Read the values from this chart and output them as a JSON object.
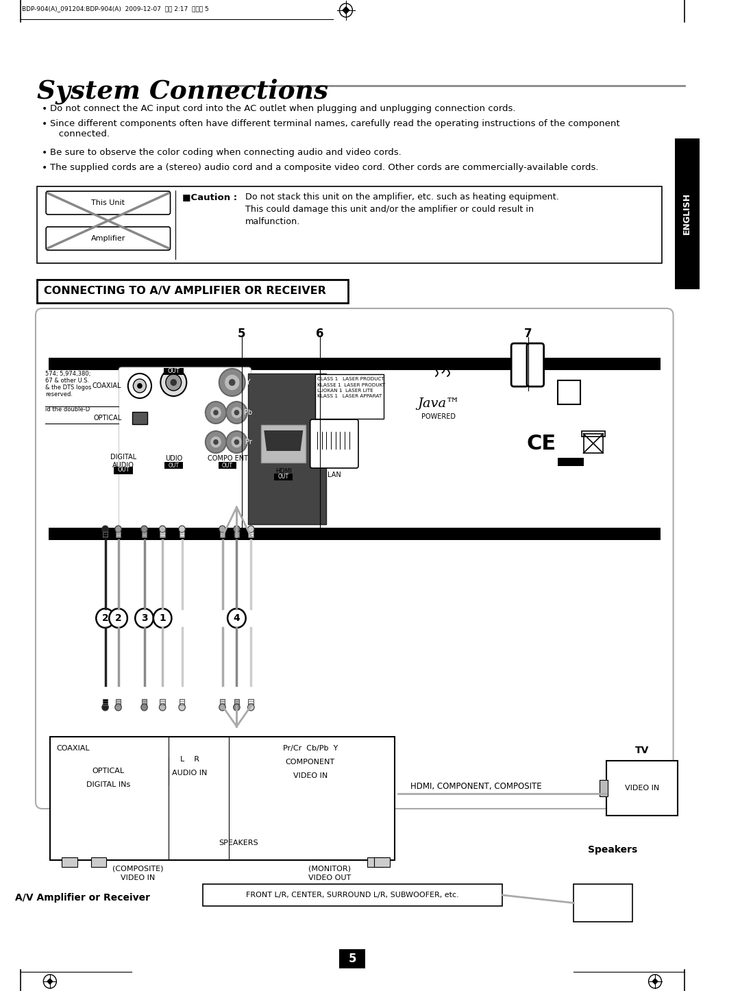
{
  "title": "System Connections",
  "bg_color": "#ffffff",
  "bullet_points": [
    "Do not connect the AC input cord into the AC outlet when plugging and unplugging connection cords.",
    "Since different components often have different terminal names, carefully read the operating instructions of the component\n   connected.",
    "Be sure to observe the color coding when connecting audio and video cords.",
    "The supplied cords are a (stereo) audio cord and a composite video cord. Other cords are commercially-available cords."
  ],
  "caution_text": "Do not stack this unit on the amplifier, etc. such as heating equipment.\nThis could damage this unit and/or the amplifier or could result in\nmalfunction.",
  "section_title": "CONNECTING TO A/V AMPLIFIER OR RECEIVER",
  "this_unit": "This Unit",
  "amplifier": "Amplifier",
  "english_label": "ENGLISH",
  "page_number": "5",
  "num5": "5",
  "num6": "6",
  "num7": "7",
  "circle_labels": [
    "2",
    "2",
    "3",
    "1",
    "4"
  ],
  "label_coaxial": "COAXIAL",
  "label_optical": "OPTICAL",
  "label_digital_audio": "DIGITAL\nAUDIO",
  "label_out": "OUT",
  "label_udio_out": "UDIO\nOUT",
  "label_compo_out": "COMPO ENT\nOUT",
  "label_hdmi": "HDMI\nOUT",
  "label_lan": "LAN",
  "label_video_out": "VIDEO\nOUT",
  "label_java": "Java™",
  "label_powered": "POWERED",
  "label_ce": "CE",
  "label_y": "Y",
  "label_pb": "Pb",
  "label_pr": "Pr",
  "label_l": "L",
  "bottom_coaxial": "COAXIAL",
  "bottom_optical": "OPTICAL",
  "bottom_digital": "DIGITAL INs",
  "bottom_lr": "L    R",
  "bottom_audio_in": "AUDIO IN",
  "bottom_prcr": "Pr/Cr  Cb/Pb  Y",
  "bottom_component": "COMPONENT",
  "bottom_video_in": "VIDEO IN",
  "bottom_composite": "(COMPOSITE)\nVIDEO IN",
  "bottom_speakers": "SPEAKERS",
  "bottom_monitor": "(MONITOR)\nVIDEO OUT",
  "bottom_hdmi_comp": "HDMI, COMPONENT, COMPOSITE",
  "bottom_tv": "TV",
  "bottom_video_in2": "VIDEO IN",
  "bottom_av_amp": "A/V Amplifier or Receiver",
  "bottom_speakers2": "Speakers",
  "bottom_front": "FRONT L/R, CENTER, SURROUND L/R, SUBWOOFER, etc.",
  "small_text1": "574; 5,974,380;",
  "small_text2": "67 & other U.S.",
  "small_text3": "& the DTS logos",
  "small_text4": "reserved.",
  "small_text5": "id the double-D",
  "laser_text": "CLASS 1   LASER PRODUCT\nKLASSE 1  LASER PRODUKT\nLUOKAN 1  LASER LITE\nKLASS 1   LASER APPARAT"
}
